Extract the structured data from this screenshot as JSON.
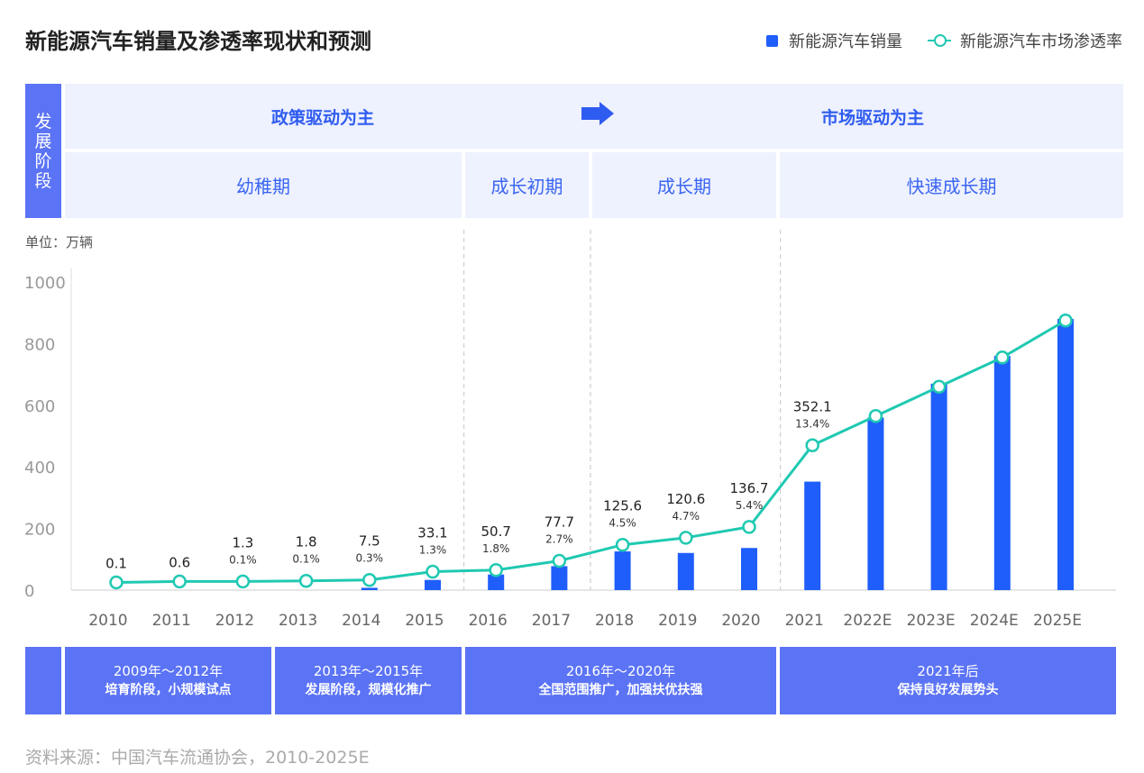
{
  "title": "新能源汽车销量及渗透率现状和预测",
  "legend": {
    "sales": "新能源汽车销量",
    "penetration": "新能源汽车市场渗透率"
  },
  "colors": {
    "bar": "#1f5efa",
    "line": "#20c9b2",
    "band_light": "#eef1fe",
    "band_dark": "#5b73f5"
  },
  "stage_header": {
    "side_label": "发展阶段",
    "driver_left": "政策驱动为主",
    "driver_right": "市场驱动为主",
    "arrow_icon": "right-arrow-icon",
    "phases": [
      "幼稚期",
      "成长初期",
      "成长期",
      "快速成长期"
    ]
  },
  "unit": "单位：万辆",
  "footer_periods": [
    {
      "years": "2009年～2012年",
      "desc": "培育阶段，小规模试点"
    },
    {
      "years": "2013年～2015年",
      "desc": "发展阶段，规模化推广"
    },
    {
      "years": "2016年～2020年",
      "desc": "全国范围推广，加强扶优扶强"
    },
    {
      "years": "2021年后",
      "desc": "保持良好发展势头"
    }
  ],
  "source": "资料来源：中国汽车流通协会，2010-2025E",
  "chart_data": {
    "type": "bar",
    "categories": [
      "2010",
      "2011",
      "2012",
      "2013",
      "2014",
      "2015",
      "2016",
      "2017",
      "2018",
      "2019",
      "2020",
      "2021",
      "2022E",
      "2023E",
      "2024E",
      "2025E"
    ],
    "ylim": [
      0,
      1000
    ],
    "yticks": [
      "0",
      "200",
      "400",
      "600",
      "800",
      "1000"
    ],
    "series": [
      {
        "name": "新能源汽车销量",
        "type": "bar",
        "values": [
          0.1,
          0.6,
          1.3,
          1.8,
          7.5,
          33.1,
          50.7,
          77.7,
          125.6,
          120.6,
          136.7,
          352.1,
          560,
          670,
          760,
          880
        ]
      },
      {
        "name": "新能源汽车市场渗透率",
        "type": "line",
        "values": [
          25,
          28,
          28,
          30,
          33,
          60,
          65,
          95,
          147,
          170,
          205,
          470,
          565,
          660,
          755,
          875
        ]
      }
    ],
    "value_labels": [
      "0.1",
      "0.6",
      "1.3",
      "1.8",
      "7.5",
      "33.1",
      "50.7",
      "77.7",
      "125.6",
      "120.6",
      "136.7",
      "352.1",
      "",
      "",
      "",
      ""
    ],
    "rate_labels": [
      "",
      "",
      "0.1%",
      "0.1%",
      "0.3%",
      "1.3%",
      "1.8%",
      "2.7%",
      "4.5%",
      "4.7%",
      "5.4%",
      "13.4%",
      "",
      "",
      "",
      ""
    ]
  }
}
